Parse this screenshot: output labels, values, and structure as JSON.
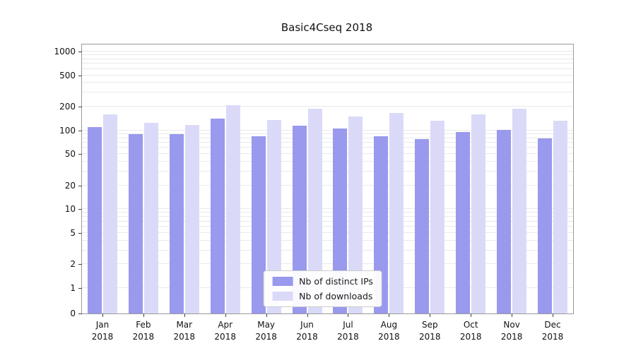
{
  "chart_data": {
    "type": "bar",
    "title": "Basic4Cseq 2018",
    "scale": "symlog",
    "grid": true,
    "legend_position": "lower center",
    "ylim": [
      0,
      1250
    ],
    "yticks": [
      0,
      1,
      2,
      5,
      10,
      20,
      50,
      100,
      200,
      500,
      1000
    ],
    "categories": [
      "Jan\n2018",
      "Feb\n2018",
      "Mar\n2018",
      "Apr\n2018",
      "May\n2018",
      "Jun\n2018",
      "Jul\n2018",
      "Aug\n2018",
      "Sep\n2018",
      "Oct\n2018",
      "Nov\n2018",
      "Dec\n2018"
    ],
    "series": [
      {
        "name": "Nb of distinct IPs",
        "color": "#9999ed",
        "values": [
          110,
          90,
          90,
          140,
          85,
          115,
          105,
          85,
          78,
          95,
          102,
          80
        ]
      },
      {
        "name": "Nb of downloads",
        "color": "#dadaf8",
        "values": [
          160,
          125,
          118,
          210,
          135,
          188,
          150,
          165,
          132,
          160,
          190,
          132
        ]
      }
    ]
  }
}
